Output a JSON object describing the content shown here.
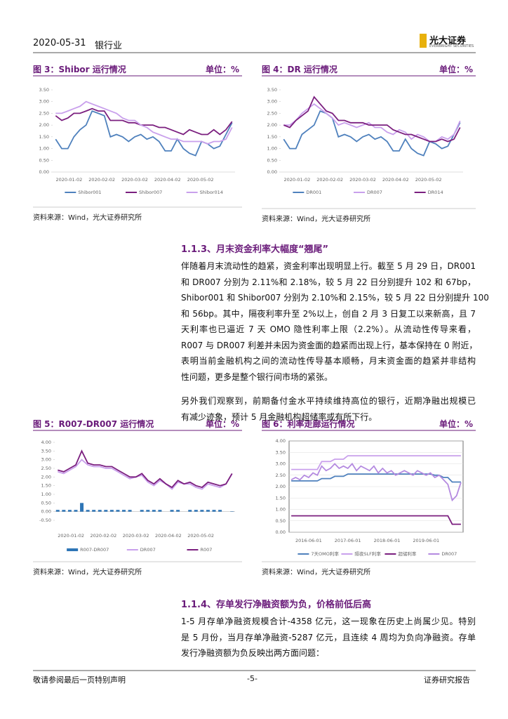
{
  "header": {
    "date": "2020-05-31",
    "industry": "银行业",
    "logo": "光大证券",
    "logo_en": "EVERBRIGHT SECURITIES"
  },
  "figures": [
    {
      "title": "图 3：Shibor 运行情况",
      "unit": "单位：%",
      "source": "资料来源：Wind，光大证券研究所",
      "ylim": [
        0,
        3.5
      ],
      "yticks": [
        {
          "value": 0,
          "label": "0.00"
        },
        {
          "value": 0.5,
          "label": "0.50"
        },
        {
          "value": 1,
          "label": "1.00"
        },
        {
          "value": 1.5,
          "label": "1.50"
        },
        {
          "value": 2,
          "label": "2.00"
        },
        {
          "value": 2.5,
          "label": "2.50"
        },
        {
          "value": 3,
          "label": "3.00"
        },
        {
          "value": 3.5,
          "label": "3.50"
        }
      ],
      "xticks": [
        "2020-01-02",
        "2020-02-02",
        "2020-03-02",
        "2020-04-02",
        "2020-05-02"
      ],
      "series": [
        {
          "name": "Shibor001",
          "color": "#4f81bd",
          "values": [
            1.4,
            1.0,
            1.0,
            1.5,
            1.8,
            2.0,
            2.6,
            2.5,
            2.4,
            1.5,
            1.6,
            1.5,
            1.3,
            1.5,
            1.6,
            1.4,
            1.5,
            1.3,
            0.9,
            0.9,
            1.4,
            1.0,
            0.8,
            0.7,
            1.3,
            1.2,
            1.0,
            1.1,
            1.6,
            2.1
          ]
        },
        {
          "name": "Shibor007",
          "color": "#7b1f7f",
          "values": [
            2.4,
            2.2,
            2.3,
            2.5,
            2.5,
            2.6,
            2.7,
            2.6,
            2.6,
            2.2,
            2.2,
            2.2,
            2.1,
            2.1,
            2.0,
            2.0,
            2.0,
            1.9,
            1.9,
            1.8,
            1.7,
            1.6,
            1.8,
            1.7,
            1.6,
            1.6,
            1.8,
            1.6,
            1.8,
            2.15
          ]
        },
        {
          "name": "Shibor014",
          "color": "#c9a0ec",
          "values": [
            2.5,
            2.5,
            2.6,
            2.7,
            2.8,
            3.0,
            2.9,
            2.8,
            2.7,
            2.6,
            2.5,
            2.3,
            2.2,
            2.2,
            2.0,
            1.9,
            1.7,
            1.6,
            1.5,
            1.4,
            1.4,
            1.3,
            1.3,
            1.3,
            1.3,
            1.2,
            1.3,
            1.3,
            1.4,
            1.9
          ]
        }
      ]
    },
    {
      "title": "图 4：DR 运行情况",
      "unit": "单位：%",
      "source": "资料来源：Wind，光大证券研究所",
      "ylim": [
        0,
        3.5
      ],
      "yticks": [
        {
          "value": 0,
          "label": "0.00"
        },
        {
          "value": 0.5,
          "label": "0.50"
        },
        {
          "value": 1,
          "label": "1.00"
        },
        {
          "value": 1.5,
          "label": "1.50"
        },
        {
          "value": 2,
          "label": "2.00"
        },
        {
          "value": 2.5,
          "label": "2.50"
        },
        {
          "value": 3,
          "label": "3.00"
        },
        {
          "value": 3.5,
          "label": "3.50"
        }
      ],
      "xticks": [
        "2020-01-02",
        "2020-02-02",
        "2020-03-02",
        "2020-04-02",
        "2020-05-02"
      ],
      "series": [
        {
          "name": "DR001",
          "color": "#4f81bd",
          "values": [
            1.4,
            1.0,
            1.0,
            1.6,
            1.8,
            2.0,
            2.6,
            2.5,
            2.3,
            1.5,
            1.6,
            1.5,
            1.3,
            1.5,
            1.6,
            1.4,
            1.5,
            1.3,
            0.9,
            0.9,
            1.4,
            1.0,
            0.8,
            0.7,
            1.3,
            1.2,
            1.0,
            1.1,
            1.6,
            2.11
          ]
        },
        {
          "name": "DR007",
          "color": "#c9a0ec",
          "values": [
            2.0,
            2.0,
            2.2,
            2.5,
            2.7,
            2.9,
            2.7,
            2.5,
            2.3,
            2.0,
            2.1,
            2.0,
            1.9,
            2.0,
            2.1,
            1.9,
            1.9,
            1.7,
            1.6,
            1.8,
            1.7,
            1.4,
            1.6,
            1.5,
            1.3,
            1.3,
            1.5,
            1.4,
            1.6,
            2.18
          ]
        },
        {
          "name": "DR014",
          "color": "#7b1f7f",
          "values": [
            2.0,
            1.9,
            2.2,
            2.4,
            2.6,
            3.2,
            2.9,
            2.6,
            2.5,
            2.2,
            2.2,
            2.1,
            2.1,
            2.1,
            2.0,
            2.0,
            2.0,
            2.0,
            1.8,
            1.7,
            1.6,
            1.6,
            1.5,
            1.4,
            1.3,
            1.3,
            1.4,
            1.3,
            1.4,
            1.9
          ]
        }
      ]
    },
    {
      "title": "图 5：R007-DR007 运行情况",
      "unit": "单位：%",
      "source": "资料来源：Wind，光大证券研究所",
      "ylim": [
        -0.5,
        4
      ],
      "yticks": [
        {
          "value": -0.5,
          "label": "-0.50"
        },
        {
          "value": 0,
          "label": "0.00"
        },
        {
          "value": 0.5,
          "label": "0.50"
        },
        {
          "value": 1,
          "label": "1.00"
        },
        {
          "value": 1.5,
          "label": "1.50"
        },
        {
          "value": 2,
          "label": "2.00"
        },
        {
          "value": 2.5,
          "label": "2.50"
        },
        {
          "value": 3,
          "label": "3.00"
        },
        {
          "value": 3.5,
          "label": "3.50"
        },
        {
          "value": 4,
          "label": "4.00"
        }
      ],
      "xticks": [
        "2020-01-02",
        "2020-02-02",
        "2020-03-02",
        "2020-04-02",
        "2020-05-02"
      ],
      "series": [
        {
          "name": "R007-DR007",
          "color": "#2e75b6",
          "type": "bar",
          "values": [
            0.1,
            0.1,
            0.1,
            0.1,
            0.5,
            0.1,
            0.1,
            0.1,
            0.1,
            0.1,
            0.1,
            0.1,
            0.1,
            0.0,
            0.1,
            0.1,
            0.1,
            0.1,
            0.0,
            0.1,
            0.1,
            0.0,
            0.1,
            0.1,
            0.1,
            0.1,
            0.1,
            0.1,
            0.0,
            0.02
          ]
        },
        {
          "name": "DR007",
          "color": "#c9a0ec",
          "values": [
            2.3,
            2.2,
            2.4,
            2.6,
            3.0,
            2.7,
            2.6,
            2.6,
            2.5,
            2.5,
            2.3,
            2.1,
            1.9,
            2.0,
            2.1,
            1.7,
            1.5,
            1.8,
            1.6,
            1.3,
            1.7,
            1.6,
            1.6,
            1.4,
            1.3,
            1.6,
            1.5,
            1.4,
            1.6,
            2.18
          ]
        },
        {
          "name": "R007",
          "color": "#7b1f7f",
          "values": [
            2.4,
            2.3,
            2.5,
            2.7,
            3.5,
            2.8,
            2.7,
            2.7,
            2.6,
            2.6,
            2.4,
            2.2,
            2.0,
            2.0,
            2.2,
            1.8,
            1.6,
            1.9,
            1.6,
            1.4,
            1.8,
            1.6,
            1.7,
            1.5,
            1.4,
            1.7,
            1.6,
            1.5,
            1.6,
            2.2
          ]
        }
      ]
    },
    {
      "title": "图 6：利率走廊运行情况",
      "unit": "单位：%",
      "source": "资料来源：Wind，光大证券研究所",
      "frame": true,
      "grid": true,
      "ylim": [
        0,
        4
      ],
      "yticks": [
        {
          "value": 0,
          "label": "0.00"
        },
        {
          "value": 0.5,
          "label": "0.50"
        },
        {
          "value": 1,
          "label": "1.00"
        },
        {
          "value": 1.5,
          "label": "1.50"
        },
        {
          "value": 2,
          "label": "2.00"
        },
        {
          "value": 2.5,
          "label": "2.50"
        },
        {
          "value": 3,
          "label": "3.00"
        },
        {
          "value": 3.5,
          "label": "3.50"
        },
        {
          "value": 4,
          "label": "4.00"
        }
      ],
      "xticks": [
        "2016-06-01",
        "2017-06-01",
        "2018-06-01",
        "2019-06-01"
      ],
      "series": [
        {
          "name": "7天OMO利率",
          "color": "#4f81bd",
          "values": [
            2.25,
            2.25,
            2.25,
            2.25,
            2.25,
            2.25,
            2.25,
            2.35,
            2.35,
            2.35,
            2.45,
            2.45,
            2.45,
            2.55,
            2.55,
            2.55,
            2.55,
            2.55,
            2.55,
            2.55,
            2.55,
            2.55,
            2.55,
            2.55,
            2.55,
            2.55,
            2.55,
            2.55,
            2.55,
            2.55,
            2.55,
            2.55,
            2.55,
            2.5,
            2.5,
            2.4,
            2.4,
            2.2,
            2.2,
            2.2
          ]
        },
        {
          "name": "隔夜SLF利率",
          "color": "#c9a0ec",
          "values": [
            2.75,
            2.75,
            2.75,
            2.75,
            2.75,
            2.75,
            2.75,
            3.1,
            3.1,
            3.1,
            3.2,
            3.2,
            3.2,
            3.35,
            3.35,
            3.35,
            3.35,
            3.35,
            3.35,
            3.35,
            3.35,
            3.35,
            3.35,
            3.35,
            3.35,
            3.35,
            3.35,
            3.35,
            3.35,
            3.35,
            3.35,
            3.35,
            3.35,
            3.35,
            3.35,
            3.35,
            3.35,
            3.35,
            3.35,
            3.35
          ]
        },
        {
          "name": "超储利率",
          "color": "#7b1f7f",
          "values": [
            0.72,
            0.72,
            0.72,
            0.72,
            0.72,
            0.72,
            0.72,
            0.72,
            0.72,
            0.72,
            0.72,
            0.72,
            0.72,
            0.72,
            0.72,
            0.72,
            0.72,
            0.72,
            0.72,
            0.72,
            0.72,
            0.72,
            0.72,
            0.72,
            0.72,
            0.72,
            0.72,
            0.72,
            0.72,
            0.72,
            0.72,
            0.72,
            0.72,
            0.72,
            0.72,
            0.72,
            0.72,
            0.35,
            0.35,
            0.35
          ]
        },
        {
          "name": "DR007",
          "color": "#b48ae0",
          "values": [
            2.3,
            2.4,
            2.3,
            2.5,
            2.4,
            2.6,
            2.5,
            2.9,
            2.7,
            2.8,
            3.0,
            2.8,
            2.9,
            2.8,
            3.0,
            2.7,
            2.9,
            2.8,
            2.7,
            2.9,
            2.6,
            2.8,
            2.6,
            2.7,
            2.5,
            2.6,
            2.7,
            2.6,
            2.5,
            2.7,
            2.6,
            2.5,
            2.6,
            2.4,
            2.5,
            2.3,
            2.1,
            1.4,
            1.6,
            2.18
          ]
        }
      ]
    }
  ],
  "section1": {
    "heading": "1.1.3、月末资金利率大幅度“翘尾”",
    "paragraphs": [
      [
        "伴随着月末流动性的趋紧，资金利率出现明显上行。截至 5 月 29 日，DR001",
        "和 DR007 分别为 2.11%和 2.18%，较 5 月 22 日分别提升 102 和 67bp，",
        "Shibor001 和 Shibor007 分别为 2.10%和 2.15%，较 5 月 22 日分别提升 100",
        "和 56bp。其中，隔夜利率升至 2%以上，创自 2 月 3 日复工以来新高，且 7",
        "天利率也已逼近 7 天 OMO 隐性利率上限（2.2%）。从流动性传导来看，",
        "R007 与 DR007 利差并未因为资金面的趋紧而出现上行，基本保持在 0 附近，",
        "表明当前金融机构之间的流动性传导基本顺畅，月末资金面的趋紧并非结构",
        "性问题，更多是整个银行间市场的紧张。"
      ],
      [
        "另外我们观察到，前期备付金水平持续维持高位的银行，近期净融出规模已",
        "有减少迹象，预计 5 月金融机构超储率或有所下行。"
      ]
    ]
  },
  "section2": {
    "heading": "1.1.4、存单发行净融资额为负，价格前低后高",
    "paragraphs": [
      [
        "1-5 月存单净融资规模合计-4358 亿元，这一现象在历史上尚属少见。特别",
        "是 5 月份，当月存单净融资-5287 亿元，且连续 4 周均为负向净融资。存单",
        "发行净融资额为负反映出两方面问题："
      ]
    ]
  },
  "footer": {
    "left": "敬请参阅最后一页特别声明",
    "center": "-5-",
    "right": "证券研究报告"
  }
}
